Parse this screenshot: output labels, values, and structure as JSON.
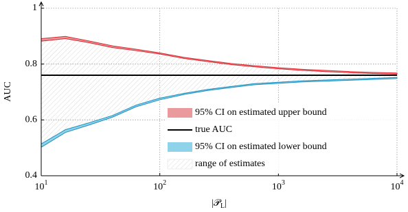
{
  "chart_data": {
    "type": "band",
    "xlabel": {
      "main": "|𝒫",
      "sub": "L",
      "end": "|"
    },
    "ylabel": "AUC",
    "log_x": true,
    "grid": true,
    "xlim": [
      10,
      10000
    ],
    "ylim": [
      0.4,
      1
    ],
    "xticks": [
      {
        "value": 10,
        "label": "10",
        "exponent": "1"
      },
      {
        "value": 100,
        "label": "10",
        "exponent": "2"
      },
      {
        "value": 1000,
        "label": "10",
        "exponent": "3"
      },
      {
        "value": 10000,
        "label": "10",
        "exponent": "4"
      }
    ],
    "yticks": [
      0.4,
      0.6,
      0.8,
      1
    ],
    "x": [
      10,
      16,
      25,
      40,
      63,
      100,
      160,
      250,
      400,
      630,
      1000,
      1600,
      2500,
      4000,
      6300,
      10000
    ],
    "series": [
      {
        "name": "95% CI on estimated upper bound",
        "color": "#d9262e",
        "fill": "#ea9a9c",
        "low": [
          0.882,
          0.891,
          0.877,
          0.859,
          0.848,
          0.836,
          0.82,
          0.809,
          0.798,
          0.79,
          0.783,
          0.777,
          0.773,
          0.769,
          0.766,
          0.764
        ],
        "high": [
          0.891,
          0.899,
          0.883,
          0.865,
          0.853,
          0.84,
          0.824,
          0.813,
          0.802,
          0.794,
          0.787,
          0.781,
          0.777,
          0.773,
          0.77,
          0.768
        ]
      },
      {
        "name": "true AUC",
        "color": "#000000",
        "value": 0.76
      },
      {
        "name": "95% CI on estimated lower bound",
        "color": "#1d8fc0",
        "fill": "#8fd3ea",
        "low": [
          0.502,
          0.555,
          0.581,
          0.61,
          0.647,
          0.672,
          0.691,
          0.705,
          0.716,
          0.726,
          0.731,
          0.736,
          0.739,
          0.742,
          0.745,
          0.748
        ],
        "high": [
          0.514,
          0.565,
          0.589,
          0.616,
          0.653,
          0.678,
          0.695,
          0.709,
          0.72,
          0.73,
          0.735,
          0.74,
          0.743,
          0.746,
          0.749,
          0.752
        ]
      },
      {
        "name": "range of estimates",
        "color": "#c8c8c8"
      }
    ],
    "legend": "lower right"
  }
}
